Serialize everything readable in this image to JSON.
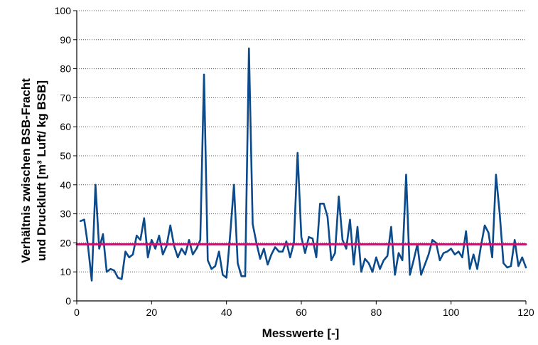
{
  "chart_data": {
    "type": "line",
    "xlabel": "Messwerte [-]",
    "ylabel_line1": "Verhältnis zwischen BSB-Fracht",
    "ylabel_line2": "und Druckluft [m³ Luft/ kg BSB]",
    "xlim": [
      0,
      120
    ],
    "ylim": [
      0,
      100
    ],
    "x_ticks": [
      0,
      20,
      40,
      60,
      80,
      100,
      120
    ],
    "y_ticks": [
      0,
      10,
      20,
      30,
      40,
      50,
      60,
      70,
      80,
      90,
      100
    ],
    "grid": "horizontal-dotted",
    "series": [
      {
        "color": "#0b4a8b",
        "x": [
          1,
          2,
          3,
          4,
          5,
          6,
          7,
          8,
          9,
          10,
          11,
          12,
          13,
          14,
          15,
          16,
          17,
          18,
          19,
          20,
          21,
          22,
          23,
          24,
          25,
          26,
          27,
          28,
          29,
          30,
          31,
          32,
          33,
          34,
          35,
          36,
          37,
          38,
          39,
          40,
          41,
          42,
          43,
          44,
          45,
          46,
          47,
          48,
          49,
          50,
          51,
          52,
          53,
          54,
          55,
          56,
          57,
          58,
          59,
          60,
          61,
          62,
          63,
          64,
          65,
          66,
          67,
          68,
          69,
          70,
          71,
          72,
          73,
          74,
          75,
          76,
          77,
          78,
          79,
          80,
          81,
          82,
          83,
          84,
          85,
          86,
          87,
          88,
          89,
          90,
          91,
          92,
          93,
          94,
          95,
          96,
          97,
          98,
          99,
          100,
          101,
          102,
          103,
          104,
          105,
          106,
          107,
          108,
          109,
          110,
          111,
          112,
          113,
          114,
          115,
          116,
          117,
          118,
          119,
          120
        ],
        "values": [
          27.5,
          28,
          19,
          7,
          40,
          18,
          23,
          10,
          11,
          10.5,
          8,
          7.5,
          17,
          15,
          16,
          22.5,
          21,
          28.5,
          15,
          21,
          18,
          22.5,
          16,
          19,
          26,
          19,
          15,
          18,
          16,
          21,
          16,
          18,
          21,
          78,
          14,
          11,
          12,
          17,
          9,
          8,
          23,
          40,
          13,
          8.5,
          8.5,
          87,
          26.5,
          20,
          14.5,
          18,
          12.5,
          16,
          18.5,
          17,
          17,
          20.5,
          15,
          20,
          51,
          22,
          16.5,
          22,
          21.5,
          15,
          33.5,
          33.5,
          29,
          14,
          16.5,
          36,
          21,
          18,
          28,
          12.5,
          25.5,
          10,
          14.5,
          13,
          10,
          15,
          11,
          14,
          15.5,
          25.5,
          9,
          16.5,
          14,
          43.5,
          9,
          14,
          19.5,
          9,
          12.5,
          16,
          21,
          20,
          14,
          16.5,
          17,
          18,
          16,
          17,
          15,
          24,
          11,
          16,
          11,
          19,
          26,
          23.5,
          15,
          43.5,
          30,
          13,
          11.5,
          12,
          21,
          12,
          15,
          11.5
        ]
      },
      {
        "color": "#c0186e",
        "x": [
          0,
          120
        ],
        "values": [
          19.5,
          19.5
        ]
      }
    ]
  }
}
